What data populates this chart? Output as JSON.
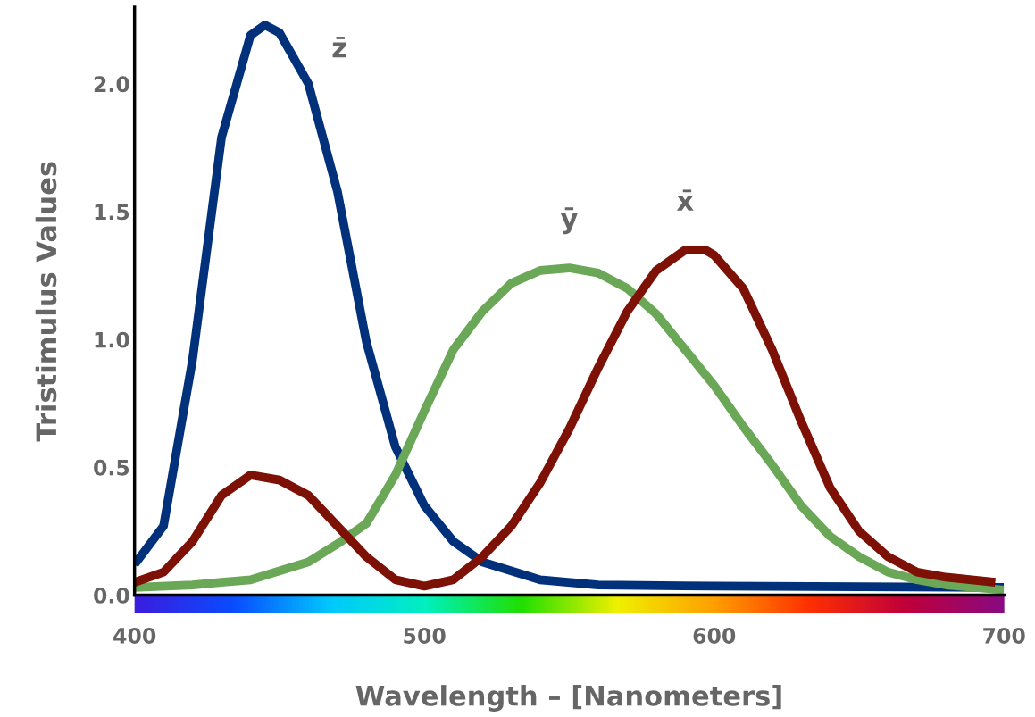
{
  "chart_data": {
    "type": "line",
    "xlabel": "Wavelength – [Nanometers]",
    "ylabel": "Tristimulus Values",
    "xlim": [
      400,
      700
    ],
    "xticks": [
      400,
      500,
      600,
      700
    ],
    "ylim": [
      0,
      2.3
    ],
    "yticks": [
      {
        "value": 0,
        "label": "0.0"
      },
      {
        "value": 0.5,
        "label": "0.5"
      },
      {
        "value": 1,
        "label": "1.0"
      },
      {
        "value": 1.5,
        "label": "1.5"
      },
      {
        "value": 2,
        "label": "2.0"
      }
    ],
    "grid": false,
    "legend": false,
    "marker": "none",
    "line_style": "solid",
    "series": [
      {
        "name": "z̄",
        "color": "#00317a",
        "x": [
          400,
          410,
          420,
          430,
          440,
          445,
          450,
          460,
          470,
          480,
          490,
          500,
          510,
          520,
          540,
          560,
          600,
          700
        ],
        "values": [
          0.12,
          0.27,
          0.92,
          1.79,
          2.19,
          2.23,
          2.2,
          2.0,
          1.58,
          0.99,
          0.58,
          0.35,
          0.21,
          0.13,
          0.06,
          0.04,
          0.035,
          0.03
        ]
      },
      {
        "name": "ȳ",
        "color": "#6aa757",
        "x": [
          400,
          420,
          440,
          460,
          470,
          480,
          490,
          500,
          510,
          520,
          530,
          540,
          550,
          560,
          570,
          580,
          590,
          600,
          610,
          620,
          630,
          640,
          650,
          660,
          670,
          680,
          700
        ],
        "values": [
          0.03,
          0.04,
          0.06,
          0.13,
          0.2,
          0.28,
          0.47,
          0.72,
          0.96,
          1.11,
          1.22,
          1.27,
          1.28,
          1.26,
          1.2,
          1.1,
          0.96,
          0.82,
          0.66,
          0.51,
          0.35,
          0.23,
          0.15,
          0.09,
          0.06,
          0.04,
          0.02
        ]
      },
      {
        "name": "x̄",
        "color": "#7d1106",
        "x": [
          400,
          410,
          420,
          430,
          440,
          450,
          460,
          470,
          480,
          490,
          500,
          510,
          520,
          530,
          540,
          550,
          560,
          570,
          580,
          590,
          597,
          600,
          610,
          620,
          630,
          640,
          650,
          660,
          670,
          680,
          697
        ],
        "values": [
          0.05,
          0.09,
          0.21,
          0.39,
          0.47,
          0.45,
          0.39,
          0.27,
          0.15,
          0.06,
          0.035,
          0.06,
          0.15,
          0.27,
          0.44,
          0.65,
          0.89,
          1.11,
          1.27,
          1.35,
          1.35,
          1.33,
          1.2,
          0.96,
          0.68,
          0.42,
          0.25,
          0.15,
          0.09,
          0.07,
          0.05
        ]
      }
    ]
  }
}
